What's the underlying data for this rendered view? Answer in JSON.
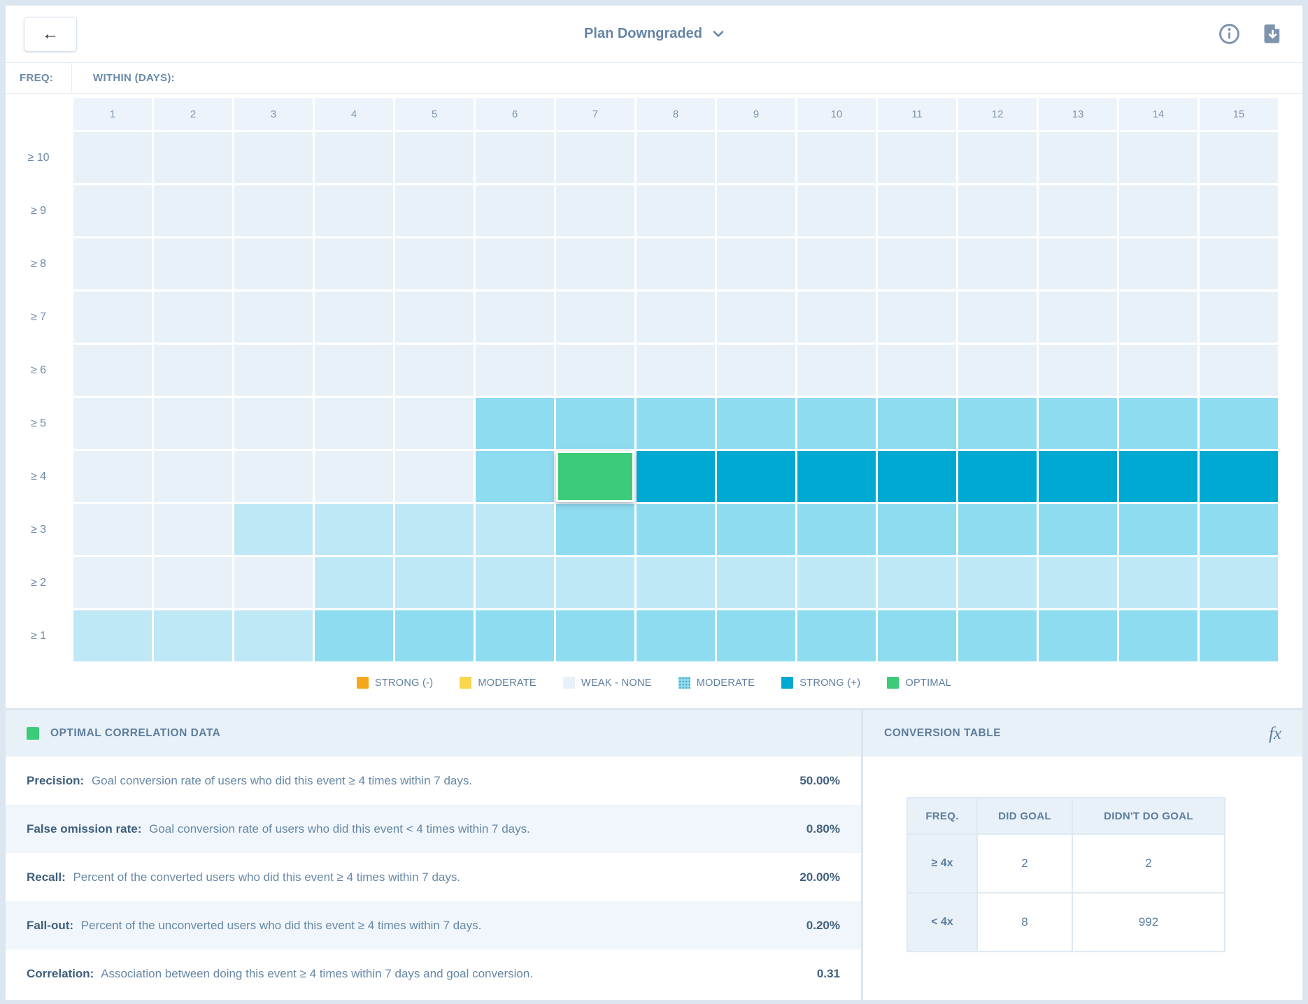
{
  "topbar": {
    "back_label": "←",
    "title": "Plan Downgraded"
  },
  "matrix": {
    "freq_label": "FREQ:",
    "within_label": "WITHIN (DAYS):",
    "columns": [
      "1",
      "2",
      "3",
      "4",
      "5",
      "6",
      "7",
      "8",
      "9",
      "10",
      "11",
      "12",
      "13",
      "14",
      "15"
    ],
    "rows": [
      {
        "label": "≥ 10",
        "cells": "WWWWWWWWWWWWWWW"
      },
      {
        "label": "≥ 9",
        "cells": "WWWWWWWWWWWWWWW"
      },
      {
        "label": "≥ 8",
        "cells": "WWWWWWWWWWWWWWW"
      },
      {
        "label": "≥ 7",
        "cells": "WWWWWWWWWWWWWWW"
      },
      {
        "label": "≥ 6",
        "cells": "WWWWWWWWWWWWWWW"
      },
      {
        "label": "≥ 5",
        "cells": "WWWWWMMMMMMMMMM"
      },
      {
        "label": "≥ 4",
        "cells": "WWWWWMOSSSSSSSS"
      },
      {
        "label": "≥ 3",
        "cells": "WWLLLLMMMMMMMMM"
      },
      {
        "label": "≥ 2",
        "cells": "WWWLLLLLLLLLLLL"
      },
      {
        "label": "≥ 1",
        "cells": "LLLMMMMMMMMMMMM"
      }
    ],
    "selected": {
      "row": "≥ 4",
      "column": "7"
    },
    "colors": {
      "W": "#e9f1f8",
      "L": "#bfe8f6",
      "M": "#8edcf0",
      "S": "#00a9d2",
      "O": "#3bcb79"
    }
  },
  "legend": {
    "items": [
      {
        "label": "STRONG (-)",
        "color": "#f5a71b",
        "hatched": false
      },
      {
        "label": "MODERATE",
        "color": "#f8d64d",
        "hatched": false
      },
      {
        "label": "WEAK - NONE",
        "color": "#e9f1f8",
        "hatched": false
      },
      {
        "label": "MODERATE",
        "color": "#8edcf0",
        "hatched": true
      },
      {
        "label": "STRONG (+)",
        "color": "#00a9d2",
        "hatched": false
      },
      {
        "label": "OPTIMAL",
        "color": "#3bcb79",
        "hatched": false
      }
    ]
  },
  "optimal_panel": {
    "title": "OPTIMAL CORRELATION DATA",
    "swatch_color": "#3bcb79",
    "metrics": [
      {
        "name": "Precision:",
        "desc": "Goal conversion rate of users who did this event ≥ 4 times within 7 days.",
        "value": "50.00%"
      },
      {
        "name": "False omission rate:",
        "desc": "Goal conversion rate of users who did this event < 4 times within 7 days.",
        "value": "0.80%"
      },
      {
        "name": "Recall:",
        "desc": "Percent of the converted users who did this event ≥ 4 times within 7 days.",
        "value": "20.00%"
      },
      {
        "name": "Fall-out:",
        "desc": "Percent of the unconverted users who did this event ≥ 4 times within 7 days.",
        "value": "0.20%"
      },
      {
        "name": "Correlation:",
        "desc": "Association between doing this event ≥ 4 times within 7 days and goal conversion.",
        "value": "0.31"
      }
    ]
  },
  "conversion_panel": {
    "title": "CONVERSION TABLE",
    "fx_label": "fx",
    "headers": [
      "FREQ.",
      "DID GOAL",
      "DIDN'T DO GOAL"
    ],
    "rows": [
      [
        "≥ 4x",
        "2",
        "2"
      ],
      [
        "< 4x",
        "8",
        "992"
      ]
    ]
  }
}
